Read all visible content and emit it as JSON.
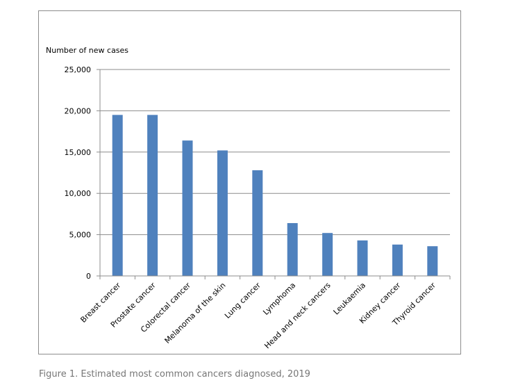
{
  "chart_data": {
    "type": "bar",
    "title": "",
    "xlabel": "",
    "ylabel": "Number  of new cases",
    "categories": [
      "Breast cancer",
      "Prostate cancer",
      "Colorectal cancer",
      "Melanoma of the skin",
      "Lung cancer",
      "Lymphoma",
      "Head and neck cancers",
      "Leukaemia",
      "Kidney cancer",
      "Thyroid cancer"
    ],
    "values": [
      19500,
      19500,
      16400,
      15200,
      12800,
      6400,
      5200,
      4300,
      3800,
      3600
    ],
    "ylim": [
      0,
      25000
    ],
    "yticks": [
      0,
      5000,
      10000,
      15000,
      20000,
      25000
    ],
    "ytick_labels": [
      "0",
      "5,000",
      "10,000",
      "15,000",
      "20,000",
      "25,000"
    ],
    "grid": true,
    "legend": "none",
    "bar_color": "#4f81bd"
  },
  "caption": "Figure 1. Estimated most common cancers diagnosed, 2019"
}
